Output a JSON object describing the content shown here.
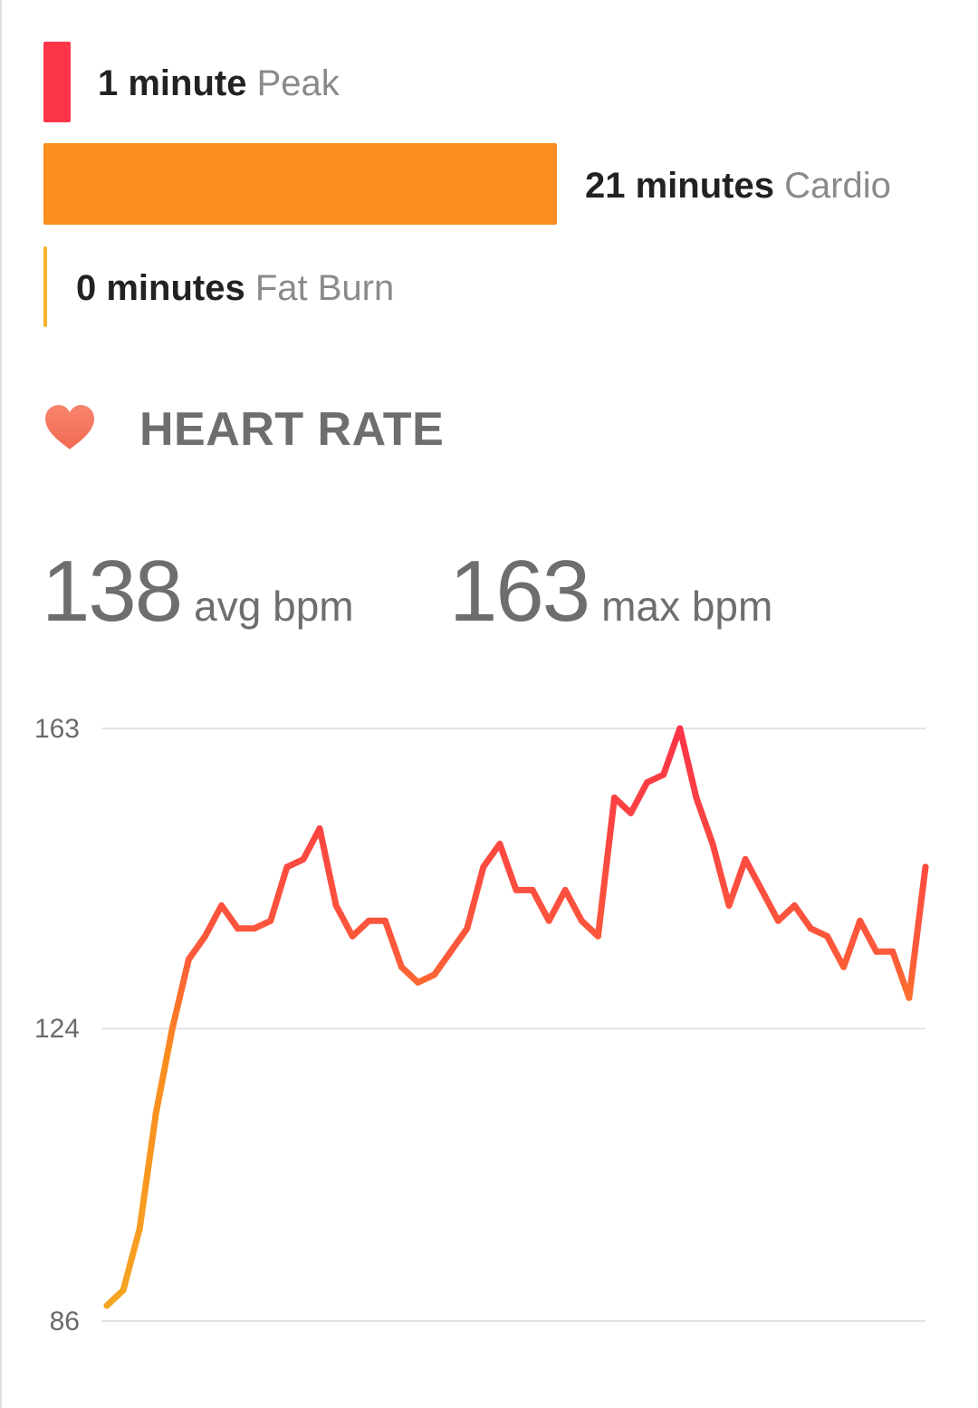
{
  "zones": [
    {
      "minutes": "1 minute",
      "name": "Peak",
      "color": "#fc3448"
    },
    {
      "minutes": "21 minutes",
      "name": "Cardio",
      "color": "#fb8c1e"
    },
    {
      "minutes": "0 minutes",
      "name": "Fat Burn",
      "color": "#f7b32b"
    }
  ],
  "heart_rate": {
    "icon": "heart-icon",
    "title": "HEART RATE",
    "avg_value": "138",
    "avg_unit": "avg bpm",
    "max_value": "163",
    "max_unit": "max bpm"
  },
  "chart_data": {
    "type": "line",
    "y_ticks": [
      86,
      124,
      163
    ],
    "ylim": [
      86,
      163
    ],
    "grid": true,
    "x": [
      0,
      2,
      4,
      6,
      8,
      10,
      12,
      14,
      16,
      18,
      20,
      22,
      24,
      26,
      28,
      30,
      32,
      34,
      36,
      38,
      40,
      42,
      44,
      46,
      48,
      50,
      52,
      54,
      56,
      58,
      60,
      62,
      64,
      66,
      68,
      70,
      72,
      74,
      76,
      78,
      80,
      82,
      84,
      86,
      88,
      90,
      92,
      94,
      96,
      98,
      100
    ],
    "values": [
      88,
      90,
      98,
      113,
      124,
      133,
      136,
      140,
      137,
      137,
      138,
      145,
      146,
      150,
      140,
      136,
      138,
      138,
      132,
      130,
      131,
      134,
      137,
      145,
      148,
      142,
      142,
      138,
      142,
      138,
      136,
      154,
      152,
      156,
      157,
      163,
      154,
      148,
      140,
      146,
      142,
      138,
      140,
      137,
      136,
      132,
      138,
      134,
      134,
      128,
      145
    ],
    "line_gradient": [
      "#f5a623",
      "#fb8c1e",
      "#fc5a3a",
      "#fc3448"
    ]
  }
}
